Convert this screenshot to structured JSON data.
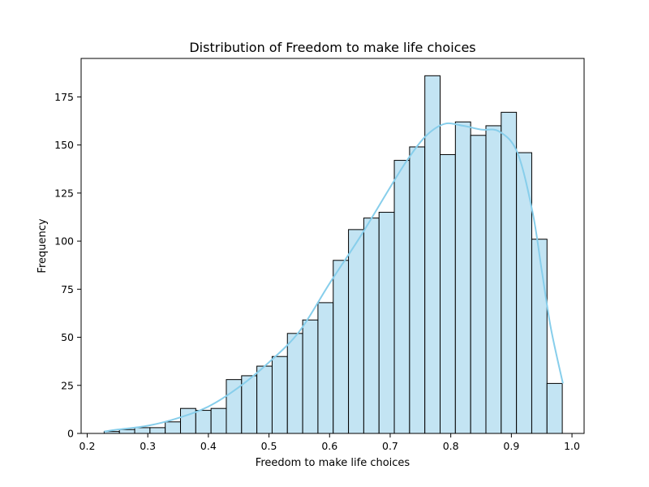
{
  "chart_data": {
    "type": "bar",
    "title": "Distribution of Freedom to make life choices",
    "xlabel": "Freedom to make life choices",
    "ylabel": "Frequency",
    "xlim": [
      0.19,
      1.02
    ],
    "ylim": [
      0,
      195
    ],
    "xticks": [
      0.2,
      0.3,
      0.4,
      0.5,
      0.6,
      0.7,
      0.8,
      0.9,
      1.0
    ],
    "xtick_labels": [
      "0.2",
      "0.3",
      "0.4",
      "0.5",
      "0.6",
      "0.7",
      "0.8",
      "0.9",
      "1.0"
    ],
    "yticks": [
      0,
      25,
      50,
      75,
      100,
      125,
      150,
      175
    ],
    "ytick_labels": [
      "0",
      "25",
      "50",
      "75",
      "100",
      "125",
      "150",
      "175"
    ],
    "bin_start": 0.228,
    "bin_width": 0.0252,
    "values": [
      1,
      2,
      3,
      3,
      6,
      13,
      12,
      13,
      28,
      30,
      35,
      40,
      52,
      59,
      68,
      90,
      106,
      112,
      115,
      142,
      149,
      186,
      145,
      162,
      155,
      160,
      167,
      146,
      101,
      26
    ],
    "kde": {
      "x": [
        0.228,
        0.25,
        0.3,
        0.35,
        0.4,
        0.45,
        0.5,
        0.55,
        0.6,
        0.65,
        0.7,
        0.73,
        0.76,
        0.79,
        0.82,
        0.85,
        0.88,
        0.91,
        0.935,
        0.95,
        0.965,
        0.985
      ],
      "y": [
        1,
        2,
        4,
        8,
        14,
        24,
        37,
        53,
        78,
        102,
        128,
        143,
        155,
        161,
        160,
        158,
        157,
        146,
        115,
        85,
        55,
        26
      ]
    },
    "grid": false,
    "legend": "none",
    "colors": {
      "bar_fill": "#c3e4f3",
      "bar_edge": "#000000",
      "kde_line": "#87ceeb",
      "axes": "#000000",
      "background": "#ffffff"
    }
  }
}
